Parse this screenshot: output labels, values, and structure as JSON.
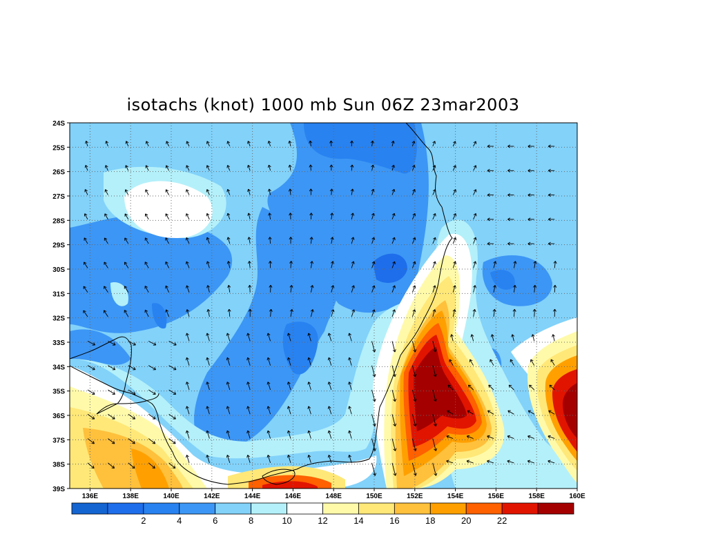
{
  "title": "isotachs (knot) 1000 mb Sun 06Z 23mar2003",
  "lat_labels": [
    "24S",
    "25S",
    "26S",
    "27S",
    "28S",
    "29S",
    "30S",
    "31S",
    "32S",
    "33S",
    "34S",
    "35S",
    "36S",
    "37S",
    "38S",
    "39S"
  ],
  "lon_labels": [
    "136E",
    "138E",
    "140E",
    "142E",
    "144E",
    "146E",
    "148E",
    "150E",
    "152E",
    "154E",
    "156E",
    "158E",
    "160E"
  ],
  "colorbar": {
    "colors": [
      "#1464d2",
      "#1e6eeb",
      "#2882f0",
      "#3c96f5",
      "#82d2fa",
      "#b4f0fa",
      "#ffffff",
      "#fffaaa",
      "#ffe878",
      "#ffc03c",
      "#ffa000",
      "#ff6000",
      "#e11400",
      "#a50000"
    ],
    "labels": [
      "2",
      "4",
      "6",
      "8",
      "10",
      "12",
      "14",
      "16",
      "18",
      "20",
      "22"
    ]
  },
  "colors": {
    "calm": "#ffffff",
    "blue_dark": "#1e6eeb",
    "blue": "#3c96f5",
    "blue_light": "#82d2fa",
    "cyan_light": "#b4f0fa",
    "yellow": "#fffaaa",
    "orange": "#ffa000",
    "red": "#e11400",
    "dark_red": "#a50000"
  }
}
